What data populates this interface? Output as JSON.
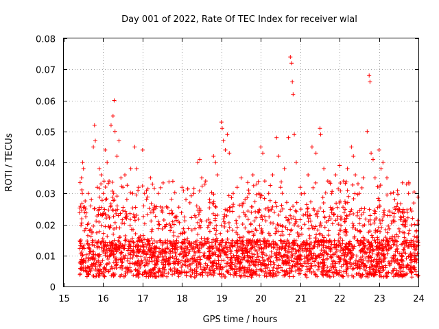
{
  "chart_data": {
    "type": "scatter",
    "title": "Day 001 of 2022, Rate Of TEC Index for receiver wlal",
    "xlabel": "GPS time / hours",
    "ylabel": "ROTI / TECUs",
    "xlim": [
      15,
      24
    ],
    "ylim": [
      0,
      0.08
    ],
    "x_ticks": [
      15,
      16,
      17,
      18,
      19,
      20,
      21,
      22,
      23,
      24
    ],
    "x_tick_labels": [
      "15",
      "16",
      "17",
      "18",
      "19",
      "20",
      "21",
      "22",
      "23",
      "24"
    ],
    "y_ticks": [
      0,
      0.01,
      0.02,
      0.03,
      0.04,
      0.05,
      0.06,
      0.07,
      0.08
    ],
    "y_tick_labels": [
      "0",
      "0.01",
      "0.02",
      "0.03",
      "0.04",
      "0.05",
      "0.06",
      "0.07",
      "0.08"
    ],
    "grid": true,
    "marker": "+",
    "color": "#ff0000",
    "series": [
      {
        "name": "ROTI",
        "points": [
          [
            15.45,
            0.035
          ],
          [
            15.48,
            0.04
          ],
          [
            15.5,
            0.038
          ],
          [
            15.55,
            0.025
          ],
          [
            15.6,
            0.02
          ],
          [
            15.62,
            0.03
          ],
          [
            15.65,
            0.018
          ],
          [
            15.7,
            0.028
          ],
          [
            15.75,
            0.045
          ],
          [
            15.78,
            0.052
          ],
          [
            15.8,
            0.047
          ],
          [
            15.85,
            0.032
          ],
          [
            15.9,
            0.038
          ],
          [
            15.95,
            0.036
          ],
          [
            16.0,
            0.03
          ],
          [
            16.05,
            0.044
          ],
          [
            16.1,
            0.04
          ],
          [
            16.15,
            0.034
          ],
          [
            16.2,
            0.052
          ],
          [
            16.25,
            0.055
          ],
          [
            16.28,
            0.06
          ],
          [
            16.3,
            0.05
          ],
          [
            16.35,
            0.042
          ],
          [
            16.4,
            0.047
          ],
          [
            16.45,
            0.035
          ],
          [
            16.5,
            0.032
          ],
          [
            16.55,
            0.036
          ],
          [
            16.6,
            0.028
          ],
          [
            16.7,
            0.038
          ],
          [
            16.75,
            0.03
          ],
          [
            16.8,
            0.045
          ],
          [
            16.85,
            0.038
          ],
          [
            16.9,
            0.032
          ],
          [
            17.0,
            0.044
          ],
          [
            17.05,
            0.03
          ],
          [
            17.1,
            0.028
          ],
          [
            17.2,
            0.035
          ],
          [
            17.25,
            0.033
          ],
          [
            17.3,
            0.026
          ],
          [
            17.4,
            0.03
          ],
          [
            17.5,
            0.024
          ],
          [
            17.6,
            0.02
          ],
          [
            17.7,
            0.018
          ],
          [
            17.8,
            0.02
          ],
          [
            17.9,
            0.016
          ],
          [
            18.0,
            0.032
          ],
          [
            18.1,
            0.028
          ],
          [
            18.2,
            0.027
          ],
          [
            18.3,
            0.03
          ],
          [
            18.4,
            0.04
          ],
          [
            18.45,
            0.041
          ],
          [
            18.5,
            0.035
          ],
          [
            18.6,
            0.034
          ],
          [
            18.7,
            0.028
          ],
          [
            18.8,
            0.042
          ],
          [
            18.85,
            0.04
          ],
          [
            18.9,
            0.036
          ],
          [
            19.0,
            0.053
          ],
          [
            19.02,
            0.051
          ],
          [
            19.05,
            0.047
          ],
          [
            19.1,
            0.044
          ],
          [
            19.15,
            0.049
          ],
          [
            19.2,
            0.043
          ],
          [
            19.3,
            0.03
          ],
          [
            19.4,
            0.032
          ],
          [
            19.5,
            0.035
          ],
          [
            19.6,
            0.028
          ],
          [
            19.7,
            0.03
          ],
          [
            19.8,
            0.036
          ],
          [
            19.9,
            0.033
          ],
          [
            20.0,
            0.045
          ],
          [
            20.05,
            0.043
          ],
          [
            20.1,
            0.034
          ],
          [
            20.2,
            0.03
          ],
          [
            20.3,
            0.036
          ],
          [
            20.4,
            0.048
          ],
          [
            20.45,
            0.042
          ],
          [
            20.5,
            0.032
          ],
          [
            20.6,
            0.038
          ],
          [
            20.7,
            0.048
          ],
          [
            20.75,
            0.074
          ],
          [
            20.78,
            0.072
          ],
          [
            20.8,
            0.066
          ],
          [
            20.82,
            0.062
          ],
          [
            20.85,
            0.049
          ],
          [
            20.9,
            0.04
          ],
          [
            21.0,
            0.032
          ],
          [
            21.1,
            0.03
          ],
          [
            21.2,
            0.036
          ],
          [
            21.3,
            0.045
          ],
          [
            21.4,
            0.043
          ],
          [
            21.5,
            0.051
          ],
          [
            21.52,
            0.049
          ],
          [
            21.6,
            0.038
          ],
          [
            21.7,
            0.034
          ],
          [
            21.8,
            0.03
          ],
          [
            21.9,
            0.036
          ],
          [
            22.0,
            0.039
          ],
          [
            22.1,
            0.034
          ],
          [
            22.2,
            0.038
          ],
          [
            22.3,
            0.045
          ],
          [
            22.35,
            0.042
          ],
          [
            22.4,
            0.036
          ],
          [
            22.5,
            0.03
          ],
          [
            22.6,
            0.035
          ],
          [
            22.7,
            0.05
          ],
          [
            22.75,
            0.068
          ],
          [
            22.77,
            0.066
          ],
          [
            22.8,
            0.043
          ],
          [
            22.85,
            0.041
          ],
          [
            22.9,
            0.035
          ],
          [
            23.0,
            0.044
          ],
          [
            23.05,
            0.038
          ],
          [
            23.1,
            0.04
          ],
          [
            23.2,
            0.035
          ],
          [
            23.3,
            0.03
          ],
          [
            23.4,
            0.028
          ],
          [
            23.5,
            0.024
          ],
          [
            23.6,
            0.02
          ],
          [
            23.7,
            0.033
          ],
          [
            23.75,
            0.03
          ],
          [
            23.8,
            0.025
          ],
          [
            23.85,
            0.022
          ],
          [
            23.9,
            0.02
          ],
          [
            23.95,
            0.018
          ]
        ]
      }
    ]
  }
}
